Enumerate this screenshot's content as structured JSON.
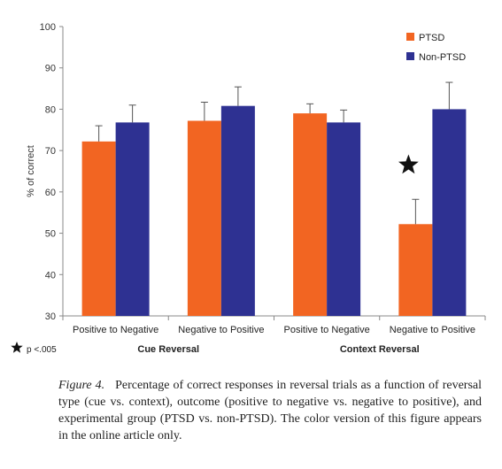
{
  "chart_data": {
    "type": "bar",
    "ylabel": "% of correct",
    "ylim": [
      30,
      100
    ],
    "yticks": [
      30,
      40,
      50,
      60,
      70,
      80,
      90,
      100
    ],
    "grid": false,
    "legend_position": "top-right",
    "categories": [
      "Positive to Negative",
      "Negative to Positive",
      "Positive to Negative",
      "Negative to Positive"
    ],
    "groups": [
      {
        "label": "Cue Reversal",
        "categories": [
          0,
          1
        ]
      },
      {
        "label": "Context Reversal",
        "categories": [
          2,
          3
        ]
      }
    ],
    "series": [
      {
        "name": "PTSD",
        "color": "#f26522",
        "values": [
          72.2,
          77.2,
          79.0,
          52.2
        ],
        "errors": [
          3.8,
          4.5,
          2.3,
          6.0
        ]
      },
      {
        "name": "Non-PTSD",
        "color": "#2e3192",
        "values": [
          76.8,
          80.8,
          76.8,
          80.0
        ],
        "errors": [
          4.2,
          4.6,
          3.0,
          6.5
        ]
      }
    ],
    "annotations": [
      {
        "marker": "star-icon",
        "category": 3,
        "y": 66.5
      },
      {
        "marker": "star-icon",
        "text": "p <.005"
      }
    ]
  },
  "caption": {
    "label": "Figure 4.",
    "text": "Percentage of correct responses in reversal trials as a function of reversal type (cue vs. context), outcome (positive to negative vs. negative to positive), and experimental group (PTSD vs. non-PTSD). The color version of this figure appears in the online article only."
  }
}
